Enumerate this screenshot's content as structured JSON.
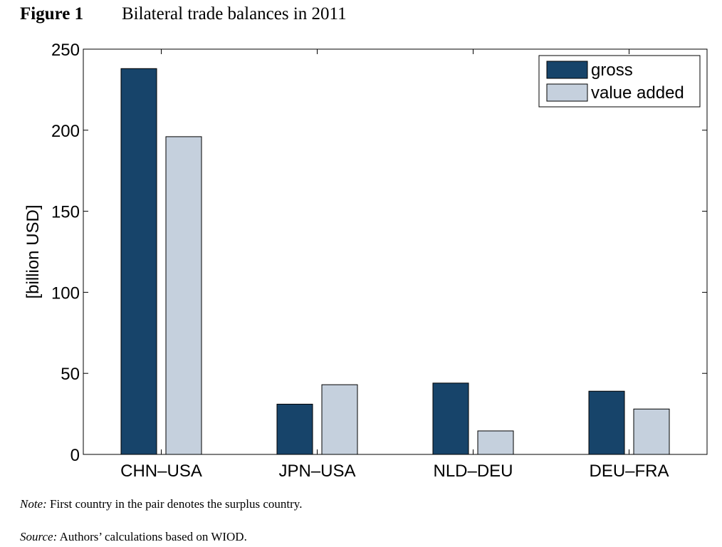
{
  "figure": {
    "label": "Figure 1",
    "title": "Bilateral trade balances in 2011"
  },
  "note": {
    "label": "Note:",
    "text": "First country in the pair denotes the surplus country."
  },
  "source": {
    "label": "Source:",
    "text": "Authors’ calculations based on WIOD."
  },
  "colors": {
    "gross": "#17446a",
    "value_added": "#c5d0dd"
  },
  "chart_data": {
    "type": "bar",
    "title": "Bilateral trade balances in 2011",
    "xlabel": "",
    "ylabel": "[billion USD]",
    "ylim": [
      0,
      250
    ],
    "yticks": [
      0,
      50,
      100,
      150,
      200,
      250
    ],
    "categories": [
      "CHN–USA",
      "JPN–USA",
      "NLD–DEU",
      "DEU–FRA"
    ],
    "series": [
      {
        "name": "gross",
        "values": [
          238,
          31,
          44,
          39
        ]
      },
      {
        "name": "value added",
        "values": [
          196,
          43,
          14.5,
          28
        ]
      }
    ],
    "legend_position": "top-right",
    "grid": false
  }
}
